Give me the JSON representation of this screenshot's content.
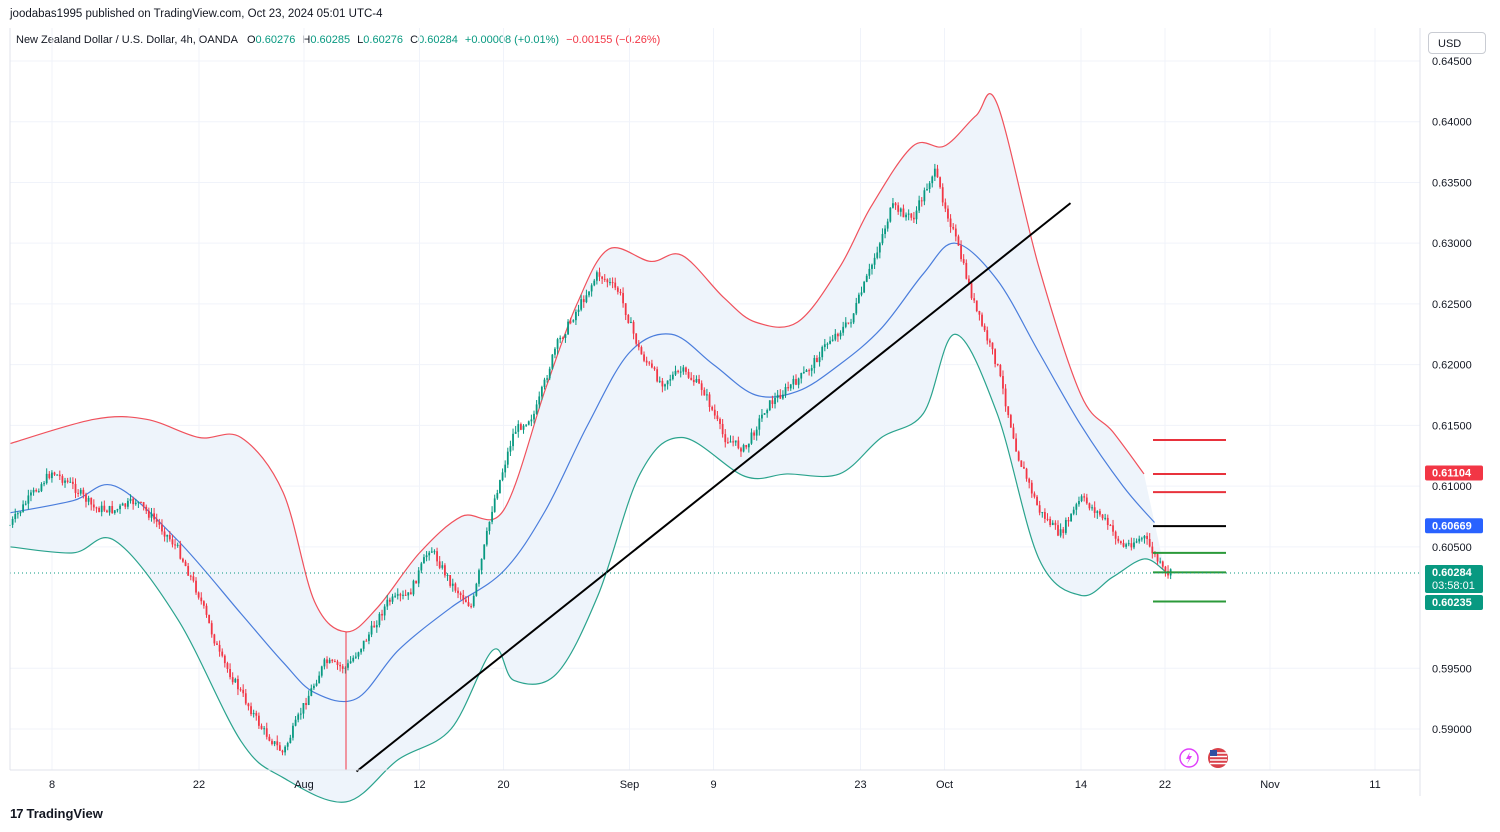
{
  "header": {
    "published_line": "joodabas1995 published on TradingView.com, Oct 23, 2024 05:01 UTC-4",
    "symbol": "New Zealand Dollar / U.S. Dollar, 4h, OANDA",
    "o_label": "O",
    "o_value": "0.60276",
    "h_label": "H",
    "h_value": "0.60285",
    "l_label": "L",
    "l_value": "0.60276",
    "c_label": "C",
    "c_value": "0.60284",
    "change": "+0.00008 (+0.01%)",
    "change2": "−0.00155 (−0.26%)"
  },
  "currency_button": "USD",
  "branding": {
    "icon": "tradingview-logo-icon",
    "text": "TradingView"
  },
  "colors": {
    "bull": "#089981",
    "bear": "#f23645",
    "upper_band": "#f0515c",
    "basis": "#4a7ddc",
    "lower_band": "#2aa38d",
    "band_fill": "#eef4fb",
    "trendline": "#000000",
    "resistance": "#e8323c",
    "support": "#2b9a3a"
  },
  "chart_data": {
    "type": "candlestick",
    "title": "New Zealand Dollar / U.S. Dollar, 4h, OANDA",
    "y_scale": "linear",
    "ylim": [
      0.587,
      0.6455
    ],
    "y_ticks": [
      "0.64500",
      "0.64000",
      "0.63500",
      "0.63000",
      "0.62500",
      "0.62000",
      "0.61500",
      "0.61000",
      "0.60500",
      "0.59500",
      "0.59000"
    ],
    "x_ticks": [
      "8",
      "22",
      "Aug",
      "12",
      "20",
      "Sep",
      "9",
      "23",
      "Oct",
      "14",
      "22",
      "Nov",
      "11"
    ],
    "grid": true,
    "close_path": [
      [
        "Jul 4",
        0.6068
      ],
      [
        "Jul 6",
        0.6092
      ],
      [
        "Jul 8",
        0.6112
      ],
      [
        "Jul 10",
        0.61
      ],
      [
        "Jul 12",
        0.6082
      ],
      [
        "Jul 14",
        0.608
      ],
      [
        "Jul 16",
        0.6088
      ],
      [
        "Jul 18",
        0.607
      ],
      [
        "Jul 20",
        0.6048
      ],
      [
        "Jul 22",
        0.601
      ],
      [
        "Jul 24",
        0.596
      ],
      [
        "Jul 26",
        0.593
      ],
      [
        "Jul 28",
        0.59
      ],
      [
        "Jul 30",
        0.588
      ],
      [
        "Aug 1",
        0.592
      ],
      [
        "Aug 3",
        0.5955
      ],
      [
        "Aug 5",
        0.595
      ],
      [
        "Aug 7",
        0.5975
      ],
      [
        "Aug 9",
        0.6005
      ],
      [
        "Aug 11",
        0.601
      ],
      [
        "Aug 13",
        0.605
      ],
      [
        "Aug 15",
        0.602
      ],
      [
        "Aug 17",
        0.6
      ],
      [
        "Aug 19",
        0.6085
      ],
      [
        "Aug 21",
        0.6145
      ],
      [
        "Aug 23",
        0.616
      ],
      [
        "Aug 25",
        0.6215
      ],
      [
        "Aug 27",
        0.6245
      ],
      [
        "Aug 29",
        0.6275
      ],
      [
        "Aug 31",
        0.626
      ],
      [
        "Sep 2",
        0.621
      ],
      [
        "Sep 4",
        0.6185
      ],
      [
        "Sep 6",
        0.6195
      ],
      [
        "Sep 8",
        0.618
      ],
      [
        "Sep 10",
        0.614
      ],
      [
        "Sep 12",
        0.613
      ],
      [
        "Sep 14",
        0.6165
      ],
      [
        "Sep 16",
        0.618
      ],
      [
        "Sep 18",
        0.6195
      ],
      [
        "Sep 20",
        0.622
      ],
      [
        "Sep 22",
        0.6235
      ],
      [
        "Sep 24",
        0.628
      ],
      [
        "Sep 26",
        0.633
      ],
      [
        "Sep 28",
        0.632
      ],
      [
        "Sep 30",
        0.636
      ],
      [
        "Oct 2",
        0.6305
      ],
      [
        "Oct 4",
        0.6245
      ],
      [
        "Oct 6",
        0.62
      ],
      [
        "Oct 8",
        0.6125
      ],
      [
        "Oct 10",
        0.608
      ],
      [
        "Oct 12",
        0.606
      ],
      [
        "Oct 14",
        0.609
      ],
      [
        "Oct 16",
        0.6075
      ],
      [
        "Oct 18",
        0.605
      ],
      [
        "Oct 20",
        0.6058
      ],
      [
        "Oct 22",
        0.6028
      ]
    ],
    "bollinger_bands": {
      "upper": [
        [
          "Jul 4",
          0.6135
        ],
        [
          "Jul 12",
          0.6155
        ],
        [
          "Jul 17",
          0.6155
        ],
        [
          "Jul 22",
          0.614
        ],
        [
          "Jul 26",
          0.614
        ],
        [
          "Jul 30",
          0.6095
        ],
        [
          "Aug 2",
          0.6005
        ],
        [
          "Aug 5",
          0.598
        ],
        [
          "Aug 8",
          0.6
        ],
        [
          "Aug 12",
          0.6045
        ],
        [
          "Aug 16",
          0.6075
        ],
        [
          "Aug 20",
          0.608
        ],
        [
          "Aug 24",
          0.618
        ],
        [
          "Aug 27",
          0.625
        ],
        [
          "Aug 30",
          0.6295
        ],
        [
          "Sep 3",
          0.6285
        ],
        [
          "Sep 6",
          0.629
        ],
        [
          "Sep 10",
          0.6255
        ],
        [
          "Sep 13",
          0.6235
        ],
        [
          "Sep 17",
          0.6235
        ],
        [
          "Sep 21",
          0.628
        ],
        [
          "Sep 24",
          0.633
        ],
        [
          "Sep 28",
          0.638
        ],
        [
          "Oct 1",
          0.638
        ],
        [
          "Oct 4",
          0.6405
        ],
        [
          "Oct 6",
          0.6415
        ],
        [
          "Oct 10",
          0.628
        ],
        [
          "Oct 14",
          0.6175
        ],
        [
          "Oct 17",
          0.6145
        ],
        [
          "Oct 20",
          0.611
        ]
      ],
      "basis": [
        [
          "Jul 4",
          0.6078
        ],
        [
          "Jul 10",
          0.6088
        ],
        [
          "Jul 14",
          0.61
        ],
        [
          "Jul 20",
          0.6055
        ],
        [
          "Jul 26",
          0.5995
        ],
        [
          "Jul 30",
          0.5955
        ],
        [
          "Aug 2",
          0.593
        ],
        [
          "Aug 6",
          0.5925
        ],
        [
          "Aug 10",
          0.5965
        ],
        [
          "Aug 15",
          0.6
        ],
        [
          "Aug 20",
          0.603
        ],
        [
          "Aug 24",
          0.608
        ],
        [
          "Aug 28",
          0.615
        ],
        [
          "Sep 1",
          0.621
        ],
        [
          "Sep 5",
          0.6225
        ],
        [
          "Sep 9",
          0.62
        ],
        [
          "Sep 13",
          0.6175
        ],
        [
          "Sep 17",
          0.6178
        ],
        [
          "Sep 21",
          0.62
        ],
        [
          "Sep 25",
          0.623
        ],
        [
          "Sep 29",
          0.6275
        ],
        [
          "Oct 2",
          0.63
        ],
        [
          "Oct 6",
          0.627
        ],
        [
          "Oct 10",
          0.621
        ],
        [
          "Oct 14",
          0.615
        ],
        [
          "Oct 18",
          0.61
        ],
        [
          "Oct 21",
          0.607
        ]
      ],
      "lower": [
        [
          "Jul 4",
          0.605
        ],
        [
          "Jul 10",
          0.6045
        ],
        [
          "Jul 14",
          0.6055
        ],
        [
          "Jul 20",
          0.599
        ],
        [
          "Jul 26",
          0.589
        ],
        [
          "Jul 30",
          0.586
        ],
        [
          "Aug 5",
          0.584
        ],
        [
          "Aug 10",
          0.5875
        ],
        [
          "Aug 15",
          0.59
        ],
        [
          "Aug 19",
          0.5965
        ],
        [
          "Aug 21",
          0.594
        ],
        [
          "Aug 25",
          0.5945
        ],
        [
          "Aug 29",
          0.601
        ],
        [
          "Sep 2",
          0.611
        ],
        [
          "Sep 6",
          0.614
        ],
        [
          "Sep 12",
          0.6108
        ],
        [
          "Sep 16",
          0.611
        ],
        [
          "Sep 21",
          0.611
        ],
        [
          "Sep 25",
          0.614
        ],
        [
          "Sep 29",
          0.616
        ],
        [
          "Oct 2",
          0.6225
        ],
        [
          "Oct 6",
          0.616
        ],
        [
          "Oct 10",
          0.604
        ],
        [
          "Oct 14",
          0.601
        ],
        [
          "Oct 17",
          0.6025
        ],
        [
          "Oct 20",
          0.604
        ],
        [
          "Oct 22",
          0.603
        ]
      ]
    },
    "trendline": {
      "from": [
        "Aug 6",
        0.5865
      ],
      "to": [
        "Oct 13",
        0.6333
      ]
    },
    "horizontal_levels": [
      {
        "price": 0.6138,
        "color": "resistance"
      },
      {
        "price": 0.611,
        "color": "resistance"
      },
      {
        "price": 0.6095,
        "color": "resistance"
      },
      {
        "price": 0.6067,
        "color": "trendline"
      },
      {
        "price": 0.6045,
        "color": "support"
      },
      {
        "price": 0.6029,
        "color": "support"
      },
      {
        "price": 0.6005,
        "color": "support"
      }
    ],
    "price_labels": [
      {
        "value": "0.61104",
        "color": "#f23645"
      },
      {
        "value": "0.60669",
        "color": "#2962ff"
      },
      {
        "value": "0.60284",
        "sub": "03:58:01",
        "color": "#089981"
      },
      {
        "value": "0.60235",
        "color": "#089981"
      }
    ],
    "last_price": 0.60284
  }
}
